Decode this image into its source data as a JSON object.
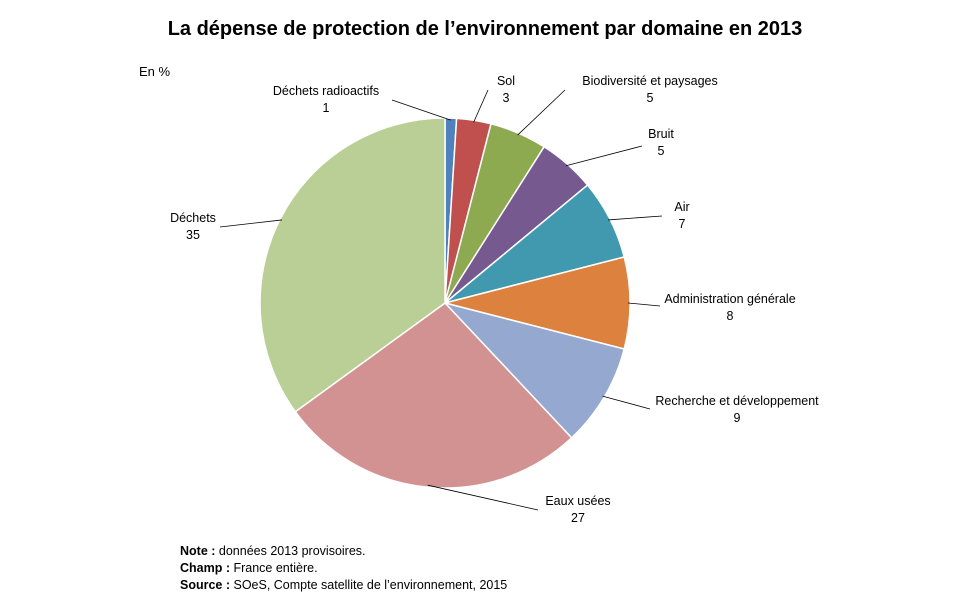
{
  "title": "La dépense de protection de l’environnement par domaine en 2013",
  "unit_label": "En %",
  "chart_data": {
    "type": "pie",
    "start_angle_deg": 0,
    "direction": "clockwise",
    "slices": [
      {
        "label": "Déchets radioactifs",
        "value": 1,
        "color": "#4F81BD"
      },
      {
        "label": "Sol",
        "value": 3,
        "color": "#C0504D"
      },
      {
        "label": "Biodiversité et paysages",
        "value": 5,
        "color": "#8DAA50"
      },
      {
        "label": "Bruit",
        "value": 5,
        "color": "#76598F"
      },
      {
        "label": "Air",
        "value": 7,
        "color": "#4199B0"
      },
      {
        "label": "Administration générale",
        "value": 8,
        "color": "#DC823E"
      },
      {
        "label": "Recherche et développement",
        "value": 9,
        "color": "#95A9D0"
      },
      {
        "label": "Eaux usées",
        "value": 27,
        "color": "#D29291"
      },
      {
        "label": "Déchets",
        "value": 35,
        "color": "#BACF95"
      }
    ]
  },
  "notes": {
    "note_label": "Note :",
    "note_text": " données 2013 provisoires.",
    "champ_label": "Champ :",
    "champ_text": " France entière.",
    "source_label": "Source :",
    "source_text": " SOeS, Compte satellite de l’environnement, 2015"
  }
}
